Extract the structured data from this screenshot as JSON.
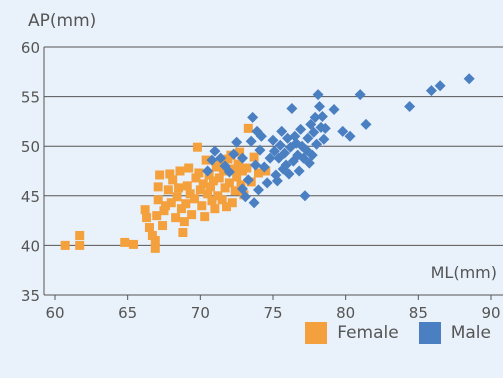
{
  "chart_data": {
    "type": "scatter",
    "ylabel": "AP(mm)",
    "xlabel": "ML(mm)",
    "xlim": [
      60,
      90
    ],
    "ylim": [
      35,
      60
    ],
    "x_ticks": [
      60,
      65,
      70,
      75,
      80,
      85,
      90
    ],
    "y_ticks": [
      35,
      40,
      45,
      50,
      55,
      60
    ],
    "grid": "horizontal",
    "legend_position": "bottom-right",
    "colors": {
      "background": "#e9f1fa",
      "grid": "#555555"
    },
    "series": [
      {
        "name": "Female",
        "color": "#f4a03c",
        "marker": "square",
        "points": [
          [
            60.7,
            40.0
          ],
          [
            61.7,
            40.0
          ],
          [
            61.7,
            41.0
          ],
          [
            64.8,
            40.3
          ],
          [
            65.4,
            40.1
          ],
          [
            66.2,
            43.6
          ],
          [
            66.3,
            42.8
          ],
          [
            66.5,
            41.8
          ],
          [
            66.7,
            41.0
          ],
          [
            66.9,
            40.5
          ],
          [
            66.9,
            39.7
          ],
          [
            67.0,
            43.0
          ],
          [
            67.1,
            44.6
          ],
          [
            67.1,
            45.9
          ],
          [
            67.2,
            47.1
          ],
          [
            67.4,
            42.0
          ],
          [
            67.5,
            43.5
          ],
          [
            67.6,
            44.0
          ],
          [
            67.8,
            45.6
          ],
          [
            67.9,
            47.2
          ],
          [
            68.0,
            44.3
          ],
          [
            68.1,
            46.6
          ],
          [
            68.3,
            42.8
          ],
          [
            68.4,
            44.9
          ],
          [
            68.5,
            45.8
          ],
          [
            68.6,
            47.5
          ],
          [
            68.7,
            43.7
          ],
          [
            68.8,
            41.3
          ],
          [
            68.9,
            42.4
          ],
          [
            69.0,
            44.2
          ],
          [
            69.1,
            46.0
          ],
          [
            69.2,
            47.8
          ],
          [
            69.3,
            45.2
          ],
          [
            69.4,
            43.1
          ],
          [
            69.6,
            44.7
          ],
          [
            69.7,
            46.8
          ],
          [
            69.8,
            49.9
          ],
          [
            69.9,
            47.3
          ],
          [
            70.0,
            45.6
          ],
          [
            70.1,
            44.0
          ],
          [
            70.2,
            46.2
          ],
          [
            70.3,
            42.9
          ],
          [
            70.4,
            48.6
          ],
          [
            70.5,
            45.2
          ],
          [
            70.6,
            47.1
          ],
          [
            70.7,
            45.9
          ],
          [
            70.8,
            44.5
          ],
          [
            70.9,
            46.5
          ],
          [
            71.0,
            43.7
          ],
          [
            71.1,
            47.9
          ],
          [
            71.2,
            45.0
          ],
          [
            71.3,
            46.8
          ],
          [
            71.4,
            48.5
          ],
          [
            71.5,
            44.6
          ],
          [
            71.6,
            47.5
          ],
          [
            71.7,
            45.8
          ],
          [
            71.8,
            43.9
          ],
          [
            71.9,
            48.7
          ],
          [
            72.0,
            46.3
          ],
          [
            72.1,
            49.1
          ],
          [
            72.2,
            44.3
          ],
          [
            72.3,
            47.7
          ],
          [
            72.4,
            45.5
          ],
          [
            72.5,
            46.9
          ],
          [
            72.6,
            48.2
          ],
          [
            72.7,
            49.4
          ],
          [
            72.8,
            46.1
          ],
          [
            72.9,
            47.5
          ],
          [
            73.0,
            45.1
          ],
          [
            73.2,
            47.8
          ],
          [
            73.3,
            51.8
          ],
          [
            73.5,
            46.4
          ],
          [
            73.7,
            48.9
          ],
          [
            74.0,
            47.3
          ],
          [
            74.5,
            47.5
          ]
        ]
      },
      {
        "name": "Male",
        "color": "#4a7fc1",
        "marker": "diamond",
        "points": [
          [
            70.5,
            47.5
          ],
          [
            70.8,
            48.6
          ],
          [
            71.0,
            49.5
          ],
          [
            71.4,
            48.8
          ],
          [
            71.7,
            48.0
          ],
          [
            72.0,
            47.4
          ],
          [
            72.3,
            49.2
          ],
          [
            72.5,
            50.4
          ],
          [
            72.9,
            48.8
          ],
          [
            72.9,
            45.7
          ],
          [
            73.1,
            44.9
          ],
          [
            73.3,
            46.6
          ],
          [
            73.5,
            50.5
          ],
          [
            73.6,
            52.9
          ],
          [
            73.7,
            44.3
          ],
          [
            73.8,
            48.1
          ],
          [
            73.9,
            51.5
          ],
          [
            74.0,
            45.6
          ],
          [
            74.1,
            49.6
          ],
          [
            74.2,
            51.0
          ],
          [
            74.4,
            47.9
          ],
          [
            74.6,
            46.3
          ],
          [
            74.8,
            48.8
          ],
          [
            75.0,
            50.6
          ],
          [
            75.1,
            49.5
          ],
          [
            75.2,
            47.1
          ],
          [
            75.3,
            46.5
          ],
          [
            75.4,
            48.8
          ],
          [
            75.5,
            50.1
          ],
          [
            75.6,
            51.5
          ],
          [
            75.7,
            47.7
          ],
          [
            75.8,
            49.3
          ],
          [
            75.9,
            48.1
          ],
          [
            76.0,
            50.8
          ],
          [
            76.1,
            47.2
          ],
          [
            76.2,
            49.9
          ],
          [
            76.3,
            53.8
          ],
          [
            76.4,
            48.5
          ],
          [
            76.5,
            51.0
          ],
          [
            76.6,
            50.3
          ],
          [
            76.7,
            49.1
          ],
          [
            76.8,
            47.5
          ],
          [
            76.9,
            51.7
          ],
          [
            77.0,
            50.0
          ],
          [
            77.1,
            48.8
          ],
          [
            77.2,
            45.0
          ],
          [
            77.3,
            49.6
          ],
          [
            77.4,
            50.8
          ],
          [
            77.5,
            48.3
          ],
          [
            77.6,
            52.2
          ],
          [
            77.7,
            49.1
          ],
          [
            77.8,
            51.4
          ],
          [
            77.9,
            52.9
          ],
          [
            78.0,
            50.2
          ],
          [
            78.1,
            55.2
          ],
          [
            78.2,
            54.0
          ],
          [
            78.3,
            51.9
          ],
          [
            78.4,
            53.0
          ],
          [
            78.5,
            50.7
          ],
          [
            78.6,
            51.8
          ],
          [
            79.2,
            53.7
          ],
          [
            79.8,
            51.5
          ],
          [
            80.3,
            51.0
          ],
          [
            81.0,
            55.2
          ],
          [
            81.4,
            52.2
          ],
          [
            84.4,
            54.0
          ],
          [
            85.9,
            55.6
          ],
          [
            86.5,
            56.1
          ],
          [
            88.5,
            56.8
          ]
        ]
      }
    ]
  }
}
